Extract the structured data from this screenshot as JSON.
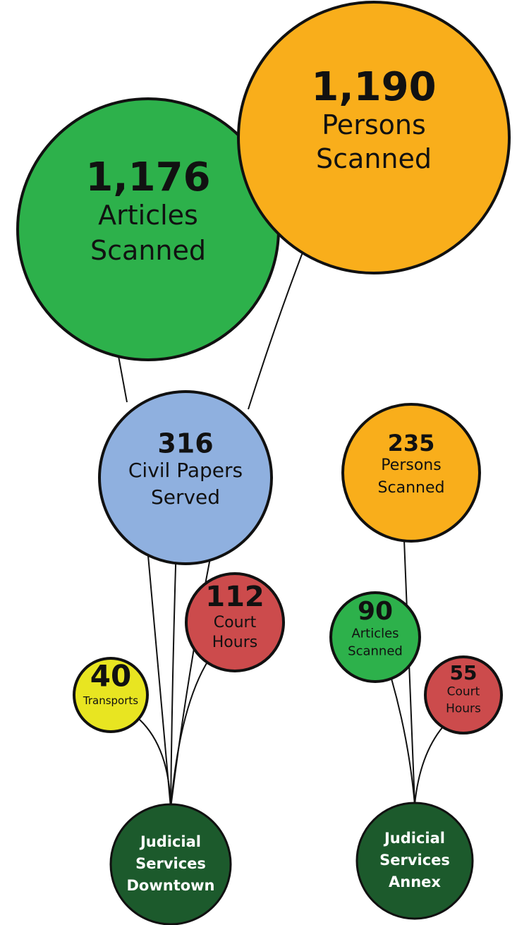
{
  "nodes": [
    {
      "value": "1,176",
      "label": [
        "Articles",
        "Scanned"
      ]
    },
    {
      "value": "1,190",
      "label": [
        "Persons",
        "Scanned"
      ]
    },
    {
      "value": "316",
      "label": [
        "Civil Papers",
        "Served"
      ]
    },
    {
      "value": "235",
      "label": [
        "Persons",
        "Scanned"
      ]
    },
    {
      "value": "112",
      "label": [
        "Court",
        "Hours"
      ]
    },
    {
      "value": "40",
      "label": [
        "Transports"
      ]
    },
    {
      "value": "90",
      "label": [
        "Articles",
        "Scanned"
      ]
    },
    {
      "value": "55",
      "label": [
        "Court",
        "Hours"
      ]
    }
  ],
  "hubs": [
    {
      "label": [
        "Judicial",
        "Services",
        "Downtown"
      ]
    },
    {
      "label": [
        "Judicial",
        "Services",
        "Annex"
      ]
    }
  ]
}
